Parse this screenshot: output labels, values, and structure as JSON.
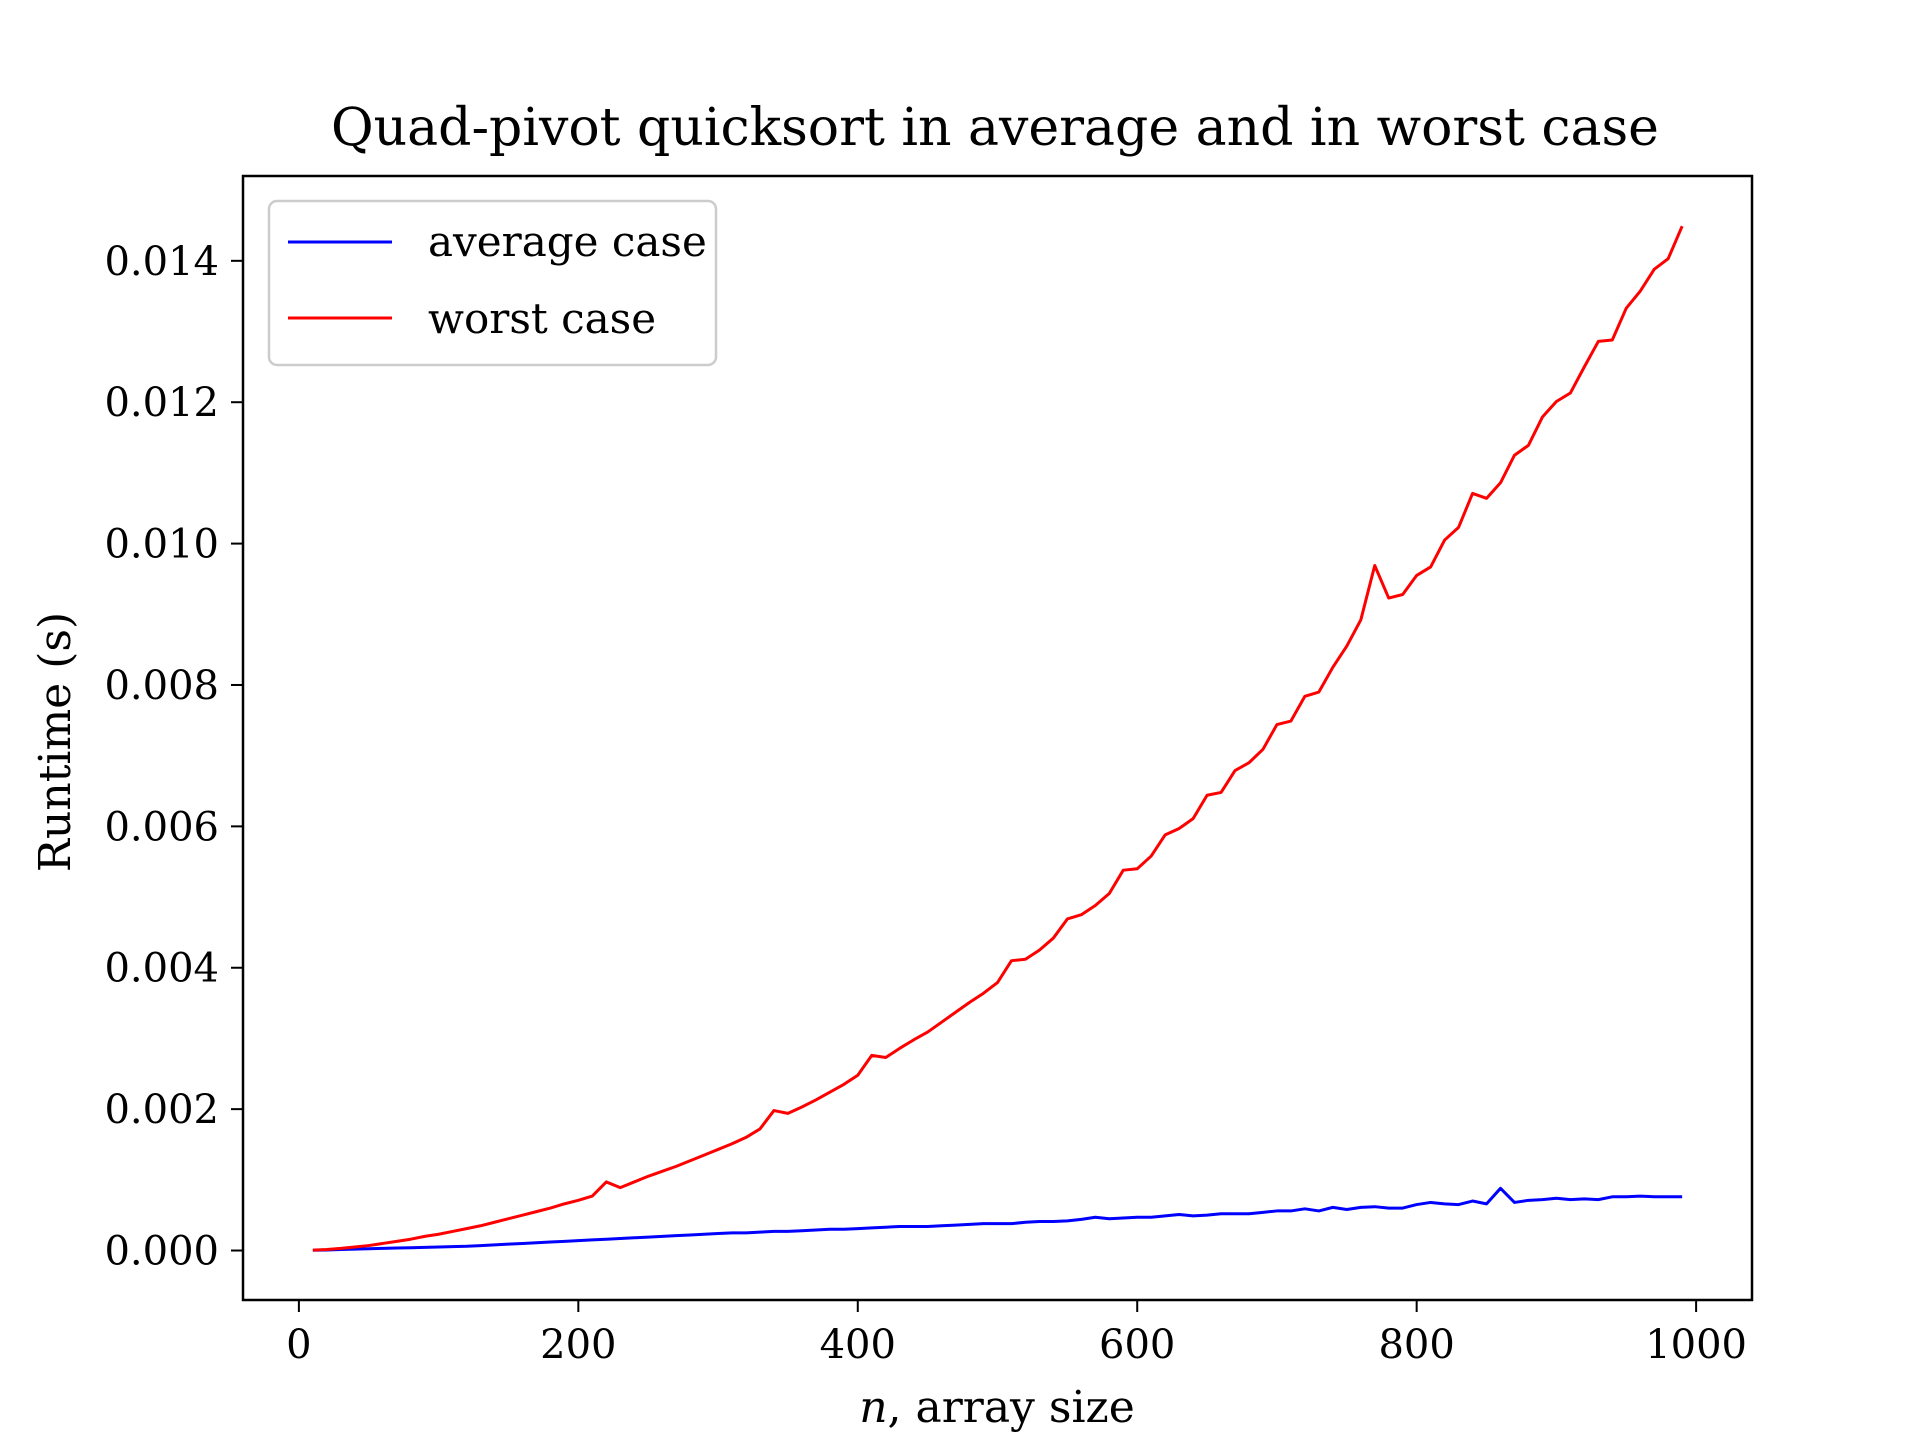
{
  "chart_data": {
    "type": "line",
    "title": "Quad-pivot quicksort in average and in worst case",
    "xlabel_var": "n",
    "xlabel_rest": ", array size",
    "ylabel": "Runtime (s)",
    "xlim": [
      -40,
      1040
    ],
    "ylim": [
      -0.0007,
      0.0152
    ],
    "xticks": [
      0,
      200,
      400,
      600,
      800,
      1000
    ],
    "xtick_labels": [
      "0",
      "200",
      "400",
      "600",
      "800",
      "1000"
    ],
    "yticks": [
      0.0,
      0.002,
      0.004,
      0.006,
      0.008,
      0.01,
      0.012,
      0.014
    ],
    "ytick_labels": [
      "0.000",
      "0.002",
      "0.004",
      "0.006",
      "0.008",
      "0.010",
      "0.012",
      "0.014"
    ],
    "grid": false,
    "legend_position": "top-left",
    "x": [
      10,
      20,
      30,
      40,
      50,
      60,
      70,
      80,
      90,
      100,
      110,
      120,
      130,
      140,
      150,
      160,
      170,
      180,
      190,
      200,
      210,
      220,
      230,
      240,
      250,
      260,
      270,
      280,
      290,
      300,
      310,
      320,
      330,
      340,
      350,
      360,
      370,
      380,
      390,
      400,
      410,
      420,
      430,
      440,
      450,
      460,
      470,
      480,
      490,
      500,
      510,
      520,
      530,
      540,
      550,
      560,
      570,
      580,
      590,
      600,
      610,
      620,
      630,
      640,
      650,
      660,
      670,
      680,
      690,
      700,
      710,
      720,
      730,
      740,
      750,
      760,
      770,
      780,
      790,
      800,
      810,
      820,
      830,
      840,
      850,
      860,
      870,
      880,
      890,
      900,
      910,
      920,
      930,
      940,
      950,
      960,
      970,
      980,
      990
    ],
    "series": [
      {
        "name": "average case",
        "color": "#0000ff",
        "values": [
          3e-06,
          8e-06,
          1.5e-05,
          2e-05,
          2.5e-05,
          3e-05,
          3.5e-05,
          4e-05,
          4.5e-05,
          5e-05,
          5.5e-05,
          6e-05,
          7e-05,
          8e-05,
          9e-05,
          0.0001,
          0.00011,
          0.00012,
          0.00013,
          0.00014,
          0.00015,
          0.00016,
          0.00017,
          0.00018,
          0.00019,
          0.0002,
          0.00021,
          0.00022,
          0.00023,
          0.00024,
          0.00025,
          0.00025,
          0.00026,
          0.00027,
          0.00027,
          0.00028,
          0.00029,
          0.0003,
          0.0003,
          0.00031,
          0.00032,
          0.00033,
          0.00034,
          0.00034,
          0.00034,
          0.00035,
          0.00036,
          0.00037,
          0.00038,
          0.00038,
          0.00038,
          0.0004,
          0.00041,
          0.00041,
          0.00042,
          0.00044,
          0.00047,
          0.00045,
          0.00046,
          0.00047,
          0.00047,
          0.00049,
          0.00051,
          0.00049,
          0.0005,
          0.00052,
          0.00052,
          0.00052,
          0.00054,
          0.00056,
          0.00056,
          0.00059,
          0.00056,
          0.00061,
          0.00058,
          0.00061,
          0.00062,
          0.0006,
          0.0006,
          0.00065,
          0.00068,
          0.00066,
          0.00065,
          0.0007,
          0.00066,
          0.00088,
          0.00068,
          0.00071,
          0.00072,
          0.00074,
          0.00072,
          0.00073,
          0.00072,
          0.00076,
          0.00076,
          0.00077,
          0.00076,
          0.00076,
          0.00076
        ]
      },
      {
        "name": "worst case",
        "color": "#ff0000",
        "values": [
          5e-06,
          1.5e-05,
          3e-05,
          5e-05,
          7e-05,
          0.0001,
          0.00013,
          0.00016,
          0.0002,
          0.00023,
          0.00027,
          0.00031,
          0.00035,
          0.0004,
          0.00045,
          0.0005,
          0.00055,
          0.0006,
          0.00066,
          0.00071,
          0.00077,
          0.00097,
          0.00089,
          0.00097,
          0.00105,
          0.00112,
          0.00119,
          0.00127,
          0.00135,
          0.00143,
          0.00151,
          0.0016,
          0.00172,
          0.00198,
          0.00194,
          0.00203,
          0.00213,
          0.00224,
          0.00235,
          0.00248,
          0.00276,
          0.00273,
          0.00286,
          0.00298,
          0.00309,
          0.00323,
          0.00337,
          0.00351,
          0.00364,
          0.00379,
          0.0041,
          0.00412,
          0.00425,
          0.00442,
          0.00469,
          0.00475,
          0.00488,
          0.00505,
          0.00538,
          0.0054,
          0.00558,
          0.00588,
          0.00597,
          0.00611,
          0.00644,
          0.00648,
          0.00679,
          0.0069,
          0.00709,
          0.00744,
          0.00749,
          0.00784,
          0.0079,
          0.00825,
          0.00855,
          0.00892,
          0.00969,
          0.00923,
          0.00928,
          0.00955,
          0.00967,
          0.01005,
          0.01023,
          0.01071,
          0.01064,
          0.01086,
          0.01125,
          0.01139,
          0.01179,
          0.01201,
          0.01213,
          0.0125,
          0.01286,
          0.01288,
          0.01333,
          0.01357,
          0.01388,
          0.01403,
          0.01449
        ]
      }
    ]
  }
}
